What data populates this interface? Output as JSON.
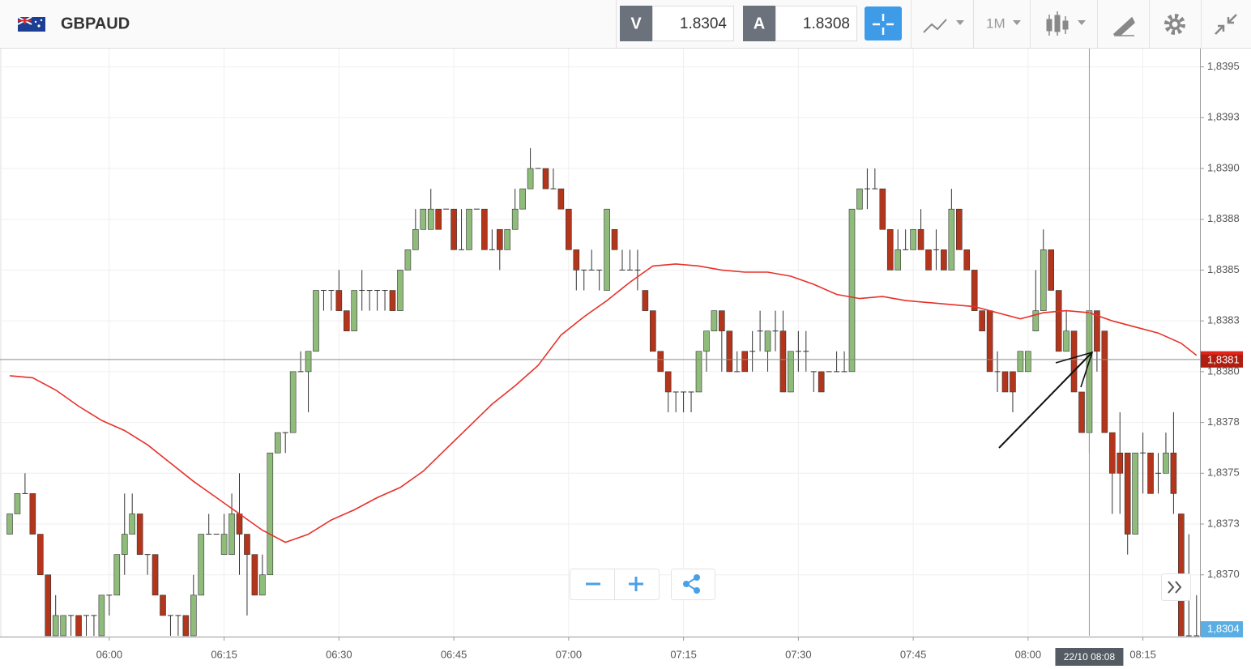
{
  "toolbar": {
    "symbol": "GBPAUD",
    "sell_label": "V",
    "sell_price": 1.8304,
    "buy_label": "A",
    "buy_price": 1.8308,
    "timeframe": "1M"
  },
  "chart_data": {
    "type": "candlestick",
    "x": [
      "05:47",
      "05:48",
      "05:49",
      "05:50",
      "05:51",
      "05:52",
      "05:53",
      "05:54",
      "05:55",
      "05:56",
      "05:57",
      "05:58",
      "05:59",
      "06:00",
      "06:01",
      "06:02",
      "06:03",
      "06:04",
      "06:05",
      "06:06",
      "06:07",
      "06:08",
      "06:09",
      "06:10",
      "06:11",
      "06:12",
      "06:13",
      "06:14",
      "06:15",
      "06:16",
      "06:17",
      "06:18",
      "06:19",
      "06:20",
      "06:21",
      "06:22",
      "06:23",
      "06:24",
      "06:25",
      "06:26",
      "06:27",
      "06:28",
      "06:29",
      "06:30",
      "06:31",
      "06:32",
      "06:33",
      "06:34",
      "06:35",
      "06:36",
      "06:37",
      "06:38",
      "06:39",
      "06:40",
      "06:41",
      "06:42",
      "06:43",
      "06:44",
      "06:45",
      "06:46",
      "06:47",
      "06:48",
      "06:49",
      "06:50",
      "06:51",
      "06:52",
      "06:53",
      "06:54",
      "06:55",
      "06:56",
      "06:57",
      "06:58",
      "06:59",
      "07:00",
      "07:01",
      "07:02",
      "07:03",
      "07:04",
      "07:05",
      "07:06",
      "07:07",
      "07:08",
      "07:09",
      "07:10",
      "07:11",
      "07:12",
      "07:13",
      "07:14",
      "07:15",
      "07:16",
      "07:17",
      "07:18",
      "07:19",
      "07:20",
      "07:21",
      "07:22",
      "07:23",
      "07:24",
      "07:25",
      "07:26",
      "07:27",
      "07:28",
      "07:29",
      "07:30",
      "07:31",
      "07:32",
      "07:33",
      "07:34",
      "07:35",
      "07:36",
      "07:37",
      "07:38",
      "07:39",
      "07:40",
      "07:41",
      "07:42",
      "07:43",
      "07:44",
      "07:45",
      "07:46",
      "07:47",
      "07:48",
      "07:49",
      "07:50",
      "07:51",
      "07:52",
      "07:53",
      "07:54",
      "07:55",
      "07:56",
      "07:57",
      "07:58",
      "07:59",
      "08:00",
      "08:01",
      "08:02",
      "08:03",
      "08:04",
      "08:05",
      "08:06",
      "08:07",
      "08:08",
      "08:09",
      "08:10",
      "08:11",
      "08:12",
      "08:13",
      "08:14",
      "08:15",
      "08:16",
      "08:17",
      "08:18",
      "08:19",
      "08:20",
      "08:21",
      "08:22"
    ],
    "open": [
      1.8372,
      1.8373,
      1.8374,
      1.8374,
      1.8372,
      1.837,
      1.8367,
      1.8367,
      1.8368,
      1.8368,
      1.8368,
      1.8368,
      1.8367,
      1.8369,
      1.8369,
      1.8371,
      1.8372,
      1.8373,
      1.8371,
      1.8371,
      1.8369,
      1.8368,
      1.8368,
      1.8368,
      1.8367,
      1.8369,
      1.8372,
      1.8372,
      1.8371,
      1.8371,
      1.8373,
      1.8372,
      1.8371,
      1.8369,
      1.837,
      1.8376,
      1.8377,
      1.8377,
      1.838,
      1.838,
      1.8381,
      1.8384,
      1.8384,
      1.8384,
      1.8383,
      1.8382,
      1.8384,
      1.8384,
      1.8384,
      1.8384,
      1.8384,
      1.8383,
      1.8385,
      1.8386,
      1.8387,
      1.8387,
      1.8388,
      1.8388,
      1.8388,
      1.8386,
      1.8386,
      1.8388,
      1.8388,
      1.8386,
      1.8387,
      1.8386,
      1.8387,
      1.8388,
      1.8389,
      1.839,
      1.839,
      1.8389,
      1.8389,
      1.8388,
      1.8386,
      1.8385,
      1.8385,
      1.8385,
      1.8384,
      1.8387,
      1.8385,
      1.8385,
      1.8385,
      1.8384,
      1.8383,
      1.8381,
      1.838,
      1.8379,
      1.8379,
      1.8379,
      1.8379,
      1.8381,
      1.8382,
      1.8383,
      1.8382,
      1.838,
      1.8381,
      1.8381,
      1.8382,
      1.8381,
      1.8382,
      1.8382,
      1.8379,
      1.8381,
      1.8381,
      1.838,
      1.838,
      1.838,
      1.838,
      1.838,
      1.838,
      1.8388,
      1.8389,
      1.8389,
      1.8389,
      1.8387,
      1.8385,
      1.8386,
      1.8386,
      1.8387,
      1.8386,
      1.8386,
      1.8386,
      1.8385,
      1.8388,
      1.8386,
      1.8385,
      1.8383,
      1.8383,
      1.838,
      1.838,
      1.838,
      1.838,
      1.838,
      1.8382,
      1.8383,
      1.8386,
      1.8384,
      1.8381,
      1.8382,
      1.8379,
      1.8377,
      1.8383,
      1.8382,
      1.8377,
      1.8376,
      1.8376,
      1.8372,
      1.8376,
      1.8376,
      1.8375,
      1.8375,
      1.8376,
      1.8373,
      1.8367,
      1.8367
    ],
    "high": [
      1.8373,
      1.8374,
      1.8375,
      1.8374,
      1.8372,
      1.837,
      1.8369,
      1.8368,
      1.8368,
      1.8368,
      1.8368,
      1.8368,
      1.8369,
      1.8369,
      1.8371,
      1.8374,
      1.8374,
      1.8373,
      1.8371,
      1.8371,
      1.8369,
      1.8368,
      1.8368,
      1.8368,
      1.837,
      1.8372,
      1.8373,
      1.8372,
      1.8373,
      1.8374,
      1.8375,
      1.8372,
      1.8371,
      1.8371,
      1.8376,
      1.8377,
      1.8377,
      1.838,
      1.8381,
      1.8381,
      1.8384,
      1.8384,
      1.8384,
      1.8385,
      1.8383,
      1.8384,
      1.8385,
      1.8384,
      1.8384,
      1.8384,
      1.8384,
      1.8385,
      1.8386,
      1.8388,
      1.8388,
      1.8389,
      1.8388,
      1.8388,
      1.8388,
      1.8388,
      1.8388,
      1.8388,
      1.8388,
      1.8387,
      1.8387,
      1.8387,
      1.8389,
      1.8389,
      1.8391,
      1.839,
      1.839,
      1.839,
      1.8389,
      1.8388,
      1.8386,
      1.8385,
      1.8386,
      1.8385,
      1.8388,
      1.8387,
      1.8386,
      1.8386,
      1.8386,
      1.8384,
      1.8383,
      1.8381,
      1.838,
      1.8379,
      1.8379,
      1.8379,
      1.8381,
      1.8382,
      1.8383,
      1.8383,
      1.8382,
      1.8381,
      1.8381,
      1.8382,
      1.8383,
      1.8382,
      1.8383,
      1.8383,
      1.8381,
      1.8382,
      1.8382,
      1.838,
      1.838,
      1.838,
      1.8381,
      1.8381,
      1.8388,
      1.8389,
      1.839,
      1.839,
      1.8389,
      1.8387,
      1.8387,
      1.8387,
      1.8387,
      1.8388,
      1.8386,
      1.8387,
      1.8386,
      1.8389,
      1.8388,
      1.8386,
      1.8385,
      1.8383,
      1.8383,
      1.8381,
      1.838,
      1.838,
      1.8381,
      1.8381,
      1.8385,
      1.8387,
      1.8386,
      1.8384,
      1.8383,
      1.8382,
      1.8379,
      1.8383,
      1.8383,
      1.8382,
      1.8377,
      1.8378,
      1.8376,
      1.8376,
      1.8377,
      1.8376,
      1.8376,
      1.8377,
      1.8378,
      1.8373,
      1.8372,
      1.8369
    ],
    "low": [
      1.8372,
      1.8373,
      1.8374,
      1.8372,
      1.837,
      1.8367,
      1.8367,
      1.8367,
      1.8367,
      1.8367,
      1.8367,
      1.8367,
      1.8367,
      1.8368,
      1.8369,
      1.837,
      1.8372,
      1.8371,
      1.837,
      1.8369,
      1.8368,
      1.8367,
      1.8367,
      1.8367,
      1.8367,
      1.8369,
      1.8372,
      1.8372,
      1.8371,
      1.8371,
      1.837,
      1.8368,
      1.8369,
      1.8369,
      1.837,
      1.8376,
      1.8376,
      1.8377,
      1.838,
      1.8378,
      1.8381,
      1.8383,
      1.8383,
      1.8383,
      1.8382,
      1.8382,
      1.8383,
      1.8383,
      1.8383,
      1.8383,
      1.8383,
      1.8383,
      1.8385,
      1.8386,
      1.8387,
      1.8387,
      1.8387,
      1.8388,
      1.8386,
      1.8386,
      1.8386,
      1.8388,
      1.8386,
      1.8386,
      1.8385,
      1.8386,
      1.8387,
      1.8388,
      1.8389,
      1.839,
      1.8389,
      1.8389,
      1.8388,
      1.8386,
      1.8384,
      1.8384,
      1.8385,
      1.8384,
      1.8384,
      1.8386,
      1.8385,
      1.8385,
      1.8384,
      1.8383,
      1.8381,
      1.838,
      1.8378,
      1.8378,
      1.8378,
      1.8378,
      1.8379,
      1.838,
      1.8382,
      1.838,
      1.838,
      1.838,
      1.838,
      1.838,
      1.8381,
      1.838,
      1.8381,
      1.8379,
      1.8379,
      1.838,
      1.838,
      1.8379,
      1.8379,
      1.838,
      1.838,
      1.838,
      1.838,
      1.8388,
      1.8388,
      1.8389,
      1.8387,
      1.8385,
      1.8385,
      1.8386,
      1.8386,
      1.8386,
      1.8385,
      1.8385,
      1.8385,
      1.8385,
      1.8386,
      1.8385,
      1.8383,
      1.8382,
      1.838,
      1.8379,
      1.8379,
      1.8378,
      1.838,
      1.838,
      1.8382,
      1.8383,
      1.8384,
      1.8381,
      1.8381,
      1.8379,
      1.8377,
      1.8376,
      1.838,
      1.8377,
      1.8373,
      1.8373,
      1.8371,
      1.8372,
      1.8374,
      1.8374,
      1.8374,
      1.8375,
      1.8373,
      1.8367,
      1.8367,
      1.8367
    ],
    "close": [
      1.8373,
      1.8374,
      1.8374,
      1.8372,
      1.837,
      1.8367,
      1.8368,
      1.8368,
      1.8368,
      1.8367,
      1.8368,
      1.8368,
      1.8369,
      1.8369,
      1.8371,
      1.8372,
      1.8373,
      1.8371,
      1.8371,
      1.8369,
      1.8368,
      1.8368,
      1.8368,
      1.8367,
      1.8369,
      1.8372,
      1.8372,
      1.8372,
      1.8372,
      1.8373,
      1.8372,
      1.8371,
      1.8369,
      1.837,
      1.8376,
      1.8377,
      1.8377,
      1.838,
      1.838,
      1.8381,
      1.8384,
      1.8384,
      1.8384,
      1.8383,
      1.8382,
      1.8384,
      1.8384,
      1.8384,
      1.8384,
      1.8384,
      1.8383,
      1.8385,
      1.8386,
      1.8387,
      1.8388,
      1.8388,
      1.8387,
      1.8388,
      1.8386,
      1.8386,
      1.8388,
      1.8388,
      1.8386,
      1.8386,
      1.8386,
      1.8387,
      1.8388,
      1.8389,
      1.839,
      1.839,
      1.8389,
      1.8389,
      1.8388,
      1.8386,
      1.8385,
      1.8385,
      1.8385,
      1.8385,
      1.8388,
      1.8386,
      1.8385,
      1.8385,
      1.8385,
      1.8383,
      1.8381,
      1.838,
      1.8379,
      1.8379,
      1.8379,
      1.8379,
      1.8381,
      1.8382,
      1.8383,
      1.8382,
      1.838,
      1.838,
      1.838,
      1.8381,
      1.8382,
      1.8382,
      1.8382,
      1.8379,
      1.8381,
      1.8381,
      1.8381,
      1.838,
      1.8379,
      1.838,
      1.838,
      1.838,
      1.8388,
      1.8389,
      1.8389,
      1.8389,
      1.8387,
      1.8385,
      1.8386,
      1.8386,
      1.8387,
      1.8386,
      1.8385,
      1.8386,
      1.8385,
      1.8388,
      1.8386,
      1.8385,
      1.8383,
      1.8382,
      1.838,
      1.838,
      1.8379,
      1.8379,
      1.8381,
      1.8381,
      1.8383,
      1.8386,
      1.8384,
      1.8381,
      1.8382,
      1.8379,
      1.8377,
      1.8383,
      1.8381,
      1.8377,
      1.8375,
      1.8375,
      1.8372,
      1.8376,
      1.8376,
      1.8374,
      1.8375,
      1.8376,
      1.8374,
      1.8367,
      1.8367,
      1.8367
    ],
    "up_color": "#8fbc7b",
    "down_color": "#b3361c",
    "border_color": "#333333",
    "moving_average": {
      "color": "#e8302a",
      "x": [
        "05:47",
        "05:50",
        "05:53",
        "05:56",
        "05:59",
        "06:02",
        "06:05",
        "06:08",
        "06:11",
        "06:14",
        "06:17",
        "06:20",
        "06:23",
        "06:26",
        "06:29",
        "06:32",
        "06:35",
        "06:38",
        "06:41",
        "06:44",
        "06:47",
        "06:50",
        "06:53",
        "06:56",
        "06:59",
        "07:02",
        "07:05",
        "07:08",
        "07:11",
        "07:14",
        "07:17",
        "07:20",
        "07:23",
        "07:26",
        "07:29",
        "07:32",
        "07:35",
        "07:38",
        "07:41",
        "07:44",
        "07:47",
        "07:50",
        "07:53",
        "07:56",
        "07:59",
        "08:02",
        "08:05",
        "08:08",
        "08:11",
        "08:14",
        "08:17",
        "08:20",
        "08:22"
      ],
      "values": [
        1.83798,
        1.83797,
        1.83791,
        1.83783,
        1.83776,
        1.83771,
        1.83764,
        1.83755,
        1.83746,
        1.83738,
        1.8373,
        1.83722,
        1.83716,
        1.8372,
        1.83727,
        1.83732,
        1.83738,
        1.83743,
        1.83751,
        1.83762,
        1.83773,
        1.83784,
        1.83793,
        1.83803,
        1.83818,
        1.83827,
        1.83835,
        1.83844,
        1.83852,
        1.83853,
        1.83852,
        1.8385,
        1.83849,
        1.83849,
        1.83847,
        1.83843,
        1.83838,
        1.83836,
        1.83837,
        1.83835,
        1.83834,
        1.83833,
        1.83832,
        1.83829,
        1.83826,
        1.83829,
        1.8383,
        1.83829,
        1.83825,
        1.83822,
        1.83819,
        1.83814,
        1.83808
      ]
    },
    "ylim": [
      1.8367,
      1.83959
    ],
    "yticks": [
      {
        "value": 1.8395,
        "label": "1,8395"
      },
      {
        "value": 1.83925,
        "label": "1,8393"
      },
      {
        "value": 1.839,
        "label": "1,8390"
      },
      {
        "value": 1.83875,
        "label": "1,8388"
      },
      {
        "value": 1.8385,
        "label": "1,8385"
      },
      {
        "value": 1.83825,
        "label": "1,8383"
      },
      {
        "value": 1.838,
        "label": "1,8380"
      },
      {
        "value": 1.83775,
        "label": "1,8378"
      },
      {
        "value": 1.8375,
        "label": "1,8375"
      },
      {
        "value": 1.83725,
        "label": "1,8373"
      },
      {
        "value": 1.837,
        "label": "1,8370"
      }
    ],
    "xticks": [
      "06:00",
      "06:15",
      "06:30",
      "06:45",
      "07:00",
      "07:15",
      "07:30",
      "07:45",
      "08:00",
      "08:15"
    ],
    "grid": true,
    "last_price": {
      "value": 1.83806,
      "label": "1,8381"
    },
    "bid_label": "1,8304",
    "crosshair": {
      "x": "08:08",
      "label": "22/10 08:08"
    }
  }
}
